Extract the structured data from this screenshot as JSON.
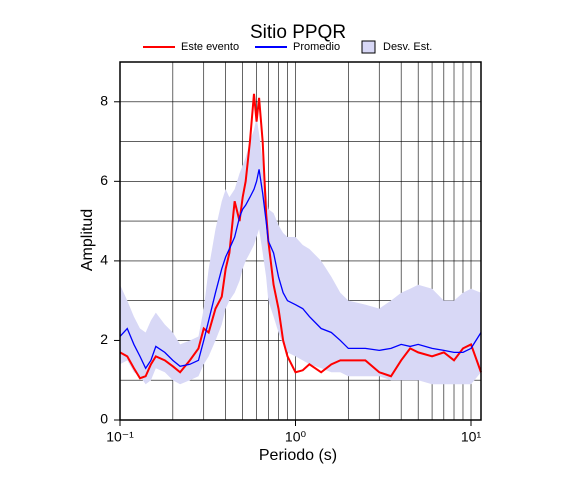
{
  "chart_data": {
    "type": "line",
    "title": "Sitio PPQR",
    "x_label": "Periodo (s)",
    "y_label": "Amplitud",
    "x_scale": "log",
    "grid": true,
    "xlim": [
      0.1,
      11.4
    ],
    "xticks": [
      {
        "value": 0.1,
        "label": "10⁻¹"
      },
      {
        "value": 1,
        "label": "10⁰"
      },
      {
        "value": 10,
        "label": "10¹"
      }
    ],
    "ylim": [
      0,
      9
    ],
    "yticks": [
      0,
      2,
      4,
      6,
      8
    ],
    "x": [
      0.1,
      0.11,
      0.12,
      0.13,
      0.14,
      0.15,
      0.16,
      0.18,
      0.2,
      0.22,
      0.25,
      0.28,
      0.3,
      0.32,
      0.35,
      0.38,
      0.4,
      0.42,
      0.45,
      0.48,
      0.5,
      0.52,
      0.55,
      0.58,
      0.6,
      0.62,
      0.65,
      0.68,
      0.7,
      0.75,
      0.8,
      0.85,
      0.9,
      1.0,
      1.1,
      1.2,
      1.4,
      1.6,
      1.8,
      2.0,
      2.5,
      3.0,
      3.5,
      4.0,
      4.5,
      5,
      6,
      7,
      8,
      9,
      10,
      11.4
    ],
    "band": {
      "name": "Desv. Est.",
      "color": "#d8d8f6",
      "upper": [
        3.4,
        3.0,
        2.6,
        2.3,
        2.2,
        2.5,
        2.7,
        2.4,
        2.2,
        1.9,
        2.0,
        2.1,
        2.8,
        3.8,
        4.8,
        5.5,
        5.8,
        5.6,
        5.8,
        6.2,
        6.4,
        6.6,
        7.0,
        7.3,
        7.6,
        7.2,
        6.5,
        5.8,
        5.3,
        5.2,
        4.9,
        4.7,
        4.6,
        4.6,
        4.4,
        4.3,
        4.0,
        3.6,
        3.2,
        3.0,
        2.9,
        2.8,
        3.0,
        3.2,
        3.3,
        3.4,
        3.3,
        3.0,
        3.0,
        3.2,
        3.3,
        3.2
      ],
      "lower": [
        1.4,
        1.5,
        1.2,
        1.1,
        0.9,
        1.0,
        1.3,
        1.2,
        1.0,
        0.9,
        1.0,
        1.1,
        1.4,
        1.6,
        2.0,
        2.4,
        2.8,
        3.0,
        3.2,
        3.5,
        3.8,
        4.0,
        4.2,
        4.4,
        4.6,
        4.8,
        4.2,
        3.6,
        3.0,
        2.6,
        2.2,
        1.9,
        1.7,
        1.6,
        1.5,
        1.4,
        1.3,
        1.2,
        1.2,
        1.1,
        1.1,
        1.1,
        1.0,
        1.0,
        1.0,
        1.0,
        0.9,
        0.9,
        0.9,
        0.9,
        0.9,
        1.2
      ]
    },
    "series": [
      {
        "name": "Este evento",
        "color": "#ff0000",
        "values": [
          1.7,
          1.6,
          1.3,
          1.05,
          1.1,
          1.4,
          1.6,
          1.5,
          1.35,
          1.2,
          1.5,
          1.8,
          2.3,
          2.2,
          2.8,
          3.1,
          3.8,
          4.2,
          5.5,
          5.0,
          5.6,
          6.0,
          7.0,
          8.2,
          7.5,
          8.1,
          7.0,
          5.2,
          4.5,
          3.4,
          2.8,
          2.0,
          1.6,
          1.2,
          1.25,
          1.4,
          1.2,
          1.4,
          1.5,
          1.5,
          1.5,
          1.2,
          1.1,
          1.5,
          1.8,
          1.7,
          1.6,
          1.7,
          1.5,
          1.8,
          1.9,
          1.2
        ]
      },
      {
        "name": "Promedio",
        "color": "#0000ff",
        "values": [
          2.1,
          2.3,
          1.9,
          1.6,
          1.3,
          1.5,
          1.85,
          1.7,
          1.5,
          1.35,
          1.4,
          1.5,
          2.0,
          2.5,
          3.2,
          3.8,
          4.1,
          4.3,
          4.6,
          5.1,
          5.3,
          5.4,
          5.6,
          5.8,
          6.0,
          6.3,
          5.7,
          5.0,
          4.5,
          4.2,
          3.6,
          3.2,
          3.0,
          2.9,
          2.8,
          2.6,
          2.3,
          2.2,
          2.0,
          1.8,
          1.8,
          1.75,
          1.8,
          1.9,
          1.85,
          1.9,
          1.8,
          1.75,
          1.7,
          1.7,
          1.8,
          2.2
        ]
      }
    ]
  }
}
